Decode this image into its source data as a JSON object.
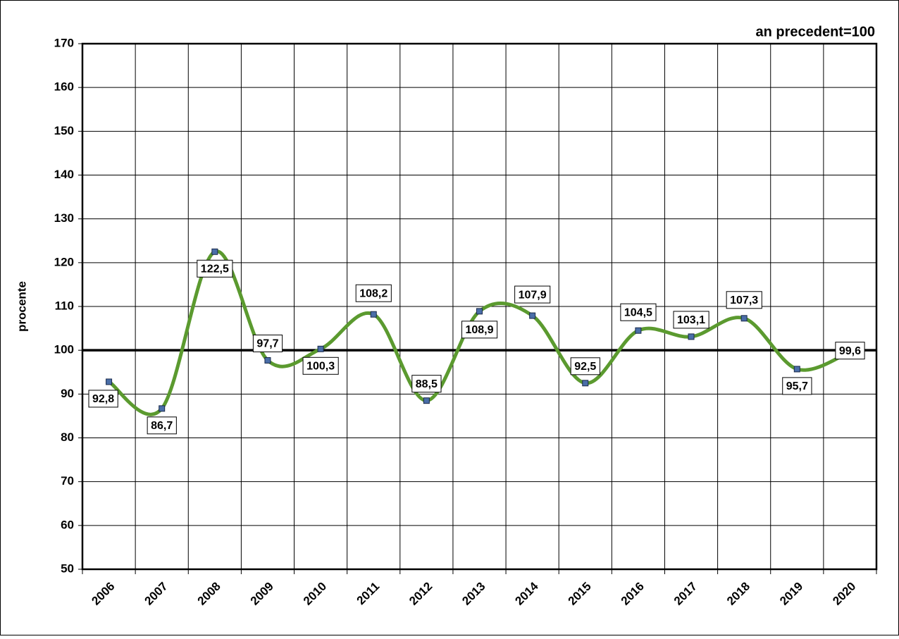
{
  "chart_data": {
    "type": "line",
    "title": "an precedent=100",
    "y_label": "procente",
    "categories": [
      "2006",
      "2007",
      "2008",
      "2009",
      "2010",
      "2011",
      "2012",
      "2013",
      "2014",
      "2015",
      "2016",
      "2017",
      "2018",
      "2019",
      "2020"
    ],
    "series": [
      {
        "name": "an precedent=100",
        "color": "#5b9a2f",
        "marker_color": "#4a6ea8",
        "values": [
          92.8,
          86.7,
          122.5,
          97.7,
          100.3,
          108.2,
          88.5,
          108.9,
          107.9,
          92.5,
          104.5,
          103.1,
          107.3,
          95.7,
          99.6
        ],
        "value_labels": [
          "92,8",
          "86,7",
          "122,5",
          "97,7",
          "100,3",
          "108,2",
          "88,5",
          "108,9",
          "107,9",
          "92,5",
          "104,5",
          "103,1",
          "107,3",
          "95,7",
          "99,6"
        ]
      }
    ],
    "reference_line": 100,
    "ylim": [
      50,
      170
    ],
    "yticks": [
      50,
      60,
      70,
      80,
      90,
      100,
      110,
      120,
      130,
      140,
      150,
      160,
      170
    ],
    "grid": true,
    "smooth": true
  }
}
